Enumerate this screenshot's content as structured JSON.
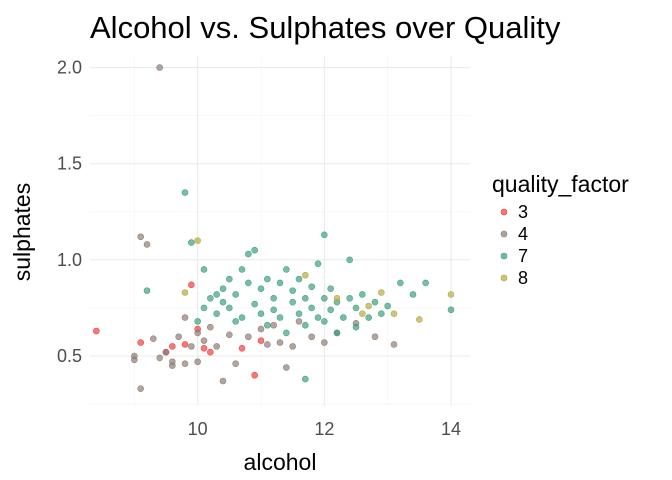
{
  "chart_data": {
    "type": "scatter",
    "title": "Alcohol vs. Sulphates over Quality",
    "xlabel": "alcohol",
    "ylabel": "sulphates",
    "xlim": [
      8.3,
      14.3
    ],
    "ylim": [
      0.24,
      2.06
    ],
    "xticks": [
      10,
      12,
      14
    ],
    "xtick_labels": [
      "10",
      "12",
      "14"
    ],
    "yticks": [
      0.5,
      1.0,
      1.5,
      2.0
    ],
    "ytick_labels": [
      "0.5",
      "1.0",
      "1.5",
      "2.0"
    ],
    "grid": true,
    "legend": {
      "title": "quality_factor",
      "position": "right"
    },
    "series": [
      {
        "name": "3",
        "color": "#ef3b3b",
        "points": [
          [
            8.4,
            0.63
          ],
          [
            9.1,
            0.57
          ],
          [
            9.5,
            0.52
          ],
          [
            9.6,
            0.55
          ],
          [
            9.8,
            0.56
          ],
          [
            9.9,
            0.87
          ],
          [
            10.0,
            0.64
          ],
          [
            10.1,
            0.54
          ],
          [
            10.2,
            0.52
          ],
          [
            10.7,
            0.54
          ],
          [
            10.9,
            0.4
          ],
          [
            11.0,
            0.58
          ]
        ]
      },
      {
        "name": "4",
        "color": "#8c7b72",
        "points": [
          [
            9.0,
            0.5
          ],
          [
            9.0,
            0.48
          ],
          [
            9.1,
            0.33
          ],
          [
            9.1,
            1.12
          ],
          [
            9.2,
            1.08
          ],
          [
            9.3,
            0.59
          ],
          [
            9.4,
            0.49
          ],
          [
            9.4,
            2.0
          ],
          [
            9.5,
            0.52
          ],
          [
            9.6,
            0.47
          ],
          [
            9.6,
            0.45
          ],
          [
            9.7,
            0.6
          ],
          [
            9.8,
            0.7
          ],
          [
            9.8,
            0.46
          ],
          [
            9.9,
            0.55
          ],
          [
            10.0,
            0.47
          ],
          [
            10.0,
            0.62
          ],
          [
            10.1,
            0.58
          ],
          [
            10.2,
            0.65
          ],
          [
            10.3,
            0.55
          ],
          [
            10.4,
            0.37
          ],
          [
            10.5,
            0.61
          ],
          [
            10.6,
            0.46
          ],
          [
            10.8,
            0.6
          ],
          [
            11.0,
            0.64
          ],
          [
            11.1,
            0.56
          ],
          [
            11.2,
            0.66
          ],
          [
            11.3,
            0.57
          ],
          [
            11.4,
            0.44
          ],
          [
            11.5,
            0.55
          ],
          [
            11.6,
            0.68
          ],
          [
            11.8,
            0.6
          ],
          [
            12.0,
            0.57
          ],
          [
            12.2,
            0.62
          ],
          [
            12.5,
            0.67
          ],
          [
            12.8,
            0.6
          ],
          [
            13.1,
            0.56
          ]
        ]
      },
      {
        "name": "7",
        "color": "#3a9e7e",
        "points": [
          [
            9.2,
            0.84
          ],
          [
            9.8,
            1.35
          ],
          [
            9.9,
            1.09
          ],
          [
            10.0,
            0.68
          ],
          [
            10.1,
            0.75
          ],
          [
            10.1,
            0.95
          ],
          [
            10.2,
            0.8
          ],
          [
            10.3,
            0.72
          ],
          [
            10.3,
            0.82
          ],
          [
            10.4,
            0.85
          ],
          [
            10.4,
            0.78
          ],
          [
            10.5,
            0.9
          ],
          [
            10.5,
            0.75
          ],
          [
            10.6,
            0.68
          ],
          [
            10.6,
            0.82
          ],
          [
            10.7,
            0.95
          ],
          [
            10.7,
            0.7
          ],
          [
            10.8,
            0.88
          ],
          [
            10.8,
            1.03
          ],
          [
            10.9,
            1.05
          ],
          [
            10.9,
            0.77
          ],
          [
            11.0,
            0.85
          ],
          [
            11.0,
            0.72
          ],
          [
            11.1,
            0.9
          ],
          [
            11.1,
            0.66
          ],
          [
            11.2,
            0.8
          ],
          [
            11.2,
            0.74
          ],
          [
            11.3,
            0.88
          ],
          [
            11.3,
            0.7
          ],
          [
            11.4,
            0.95
          ],
          [
            11.4,
            0.62
          ],
          [
            11.5,
            0.78
          ],
          [
            11.5,
            0.84
          ],
          [
            11.6,
            0.72
          ],
          [
            11.6,
            0.9
          ],
          [
            11.7,
            0.66
          ],
          [
            11.7,
            0.8
          ],
          [
            11.7,
            0.38
          ],
          [
            11.8,
            0.75
          ],
          [
            11.8,
            0.86
          ],
          [
            11.9,
            0.7
          ],
          [
            11.9,
            0.98
          ],
          [
            12.0,
            1.13
          ],
          [
            12.0,
            0.8
          ],
          [
            12.0,
            0.68
          ],
          [
            12.1,
            0.74
          ],
          [
            12.1,
            0.85
          ],
          [
            12.2,
            0.62
          ],
          [
            12.2,
            0.78
          ],
          [
            12.3,
            0.7
          ],
          [
            12.4,
            1.0
          ],
          [
            12.4,
            0.8
          ],
          [
            12.5,
            0.65
          ],
          [
            12.5,
            0.75
          ],
          [
            12.6,
            0.82
          ],
          [
            12.7,
            0.7
          ],
          [
            12.8,
            0.78
          ],
          [
            12.9,
            0.72
          ],
          [
            13.0,
            0.76
          ],
          [
            13.2,
            0.88
          ],
          [
            13.4,
            0.82
          ],
          [
            13.6,
            0.88
          ],
          [
            14.0,
            0.74
          ]
        ]
      },
      {
        "name": "8",
        "color": "#b5a83c",
        "points": [
          [
            9.8,
            0.83
          ],
          [
            10.0,
            1.1
          ],
          [
            11.7,
            0.92
          ],
          [
            12.2,
            0.8
          ],
          [
            12.6,
            0.72
          ],
          [
            12.7,
            0.76
          ],
          [
            12.9,
            0.83
          ],
          [
            13.1,
            0.72
          ],
          [
            13.5,
            0.69
          ],
          [
            14.0,
            0.82
          ]
        ]
      }
    ]
  }
}
